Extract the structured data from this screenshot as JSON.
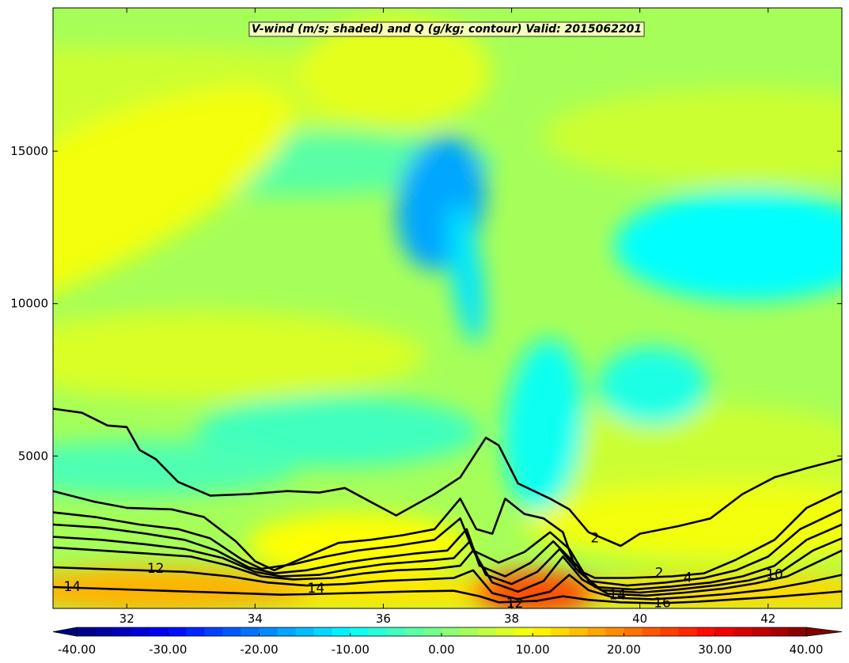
{
  "chart_data": {
    "type": "heatmap",
    "title": "V-wind (m/s; shaded) and Q (g/kg; contour) Valid: 2015062201",
    "xlabel": "",
    "ylabel": "",
    "xlim": [
      30.85,
      43.15
    ],
    "ylim": [
      0,
      19700
    ],
    "x_ticks": [
      32,
      34,
      36,
      38,
      40,
      42
    ],
    "x_tick_labels": [
      "32",
      "34",
      "36",
      "38",
      "40",
      "42"
    ],
    "y_ticks": [
      5000,
      10000,
      15000
    ],
    "y_tick_labels": [
      "5000",
      "10000",
      "15000"
    ],
    "shaded_field": {
      "name": "V-wind",
      "units": "m/s",
      "colormap": "jet",
      "levels_range": [
        -40,
        40
      ],
      "background_value": 3,
      "features": [
        {
          "region": "upper-left band",
          "x": 31.2,
          "y": 13200,
          "value": 9
        },
        {
          "region": "jet core",
          "x": 36.9,
          "y": 13300,
          "value": -17
        },
        {
          "region": "jet core tail",
          "x": 37.3,
          "y": 11000,
          "value": -12
        },
        {
          "region": "upper-right",
          "x": 41.7,
          "y": 11900,
          "value": -10
        },
        {
          "region": "mid-right",
          "x": 40.2,
          "y": 7300,
          "value": -8
        },
        {
          "region": "lower mid",
          "x": 38.5,
          "y": 6000,
          "value": -9
        },
        {
          "region": "near-surface hot spot",
          "x": 38.35,
          "y": 500,
          "value": 24
        },
        {
          "region": "near-surface left",
          "x": 32.5,
          "y": 600,
          "value": 16
        }
      ]
    },
    "contour_field": {
      "name": "Q",
      "units": "g/kg",
      "color": "#000000",
      "visible_labels": [
        {
          "text": "14",
          "x": 31.15,
          "y": 700
        },
        {
          "text": "12",
          "x": 32.45,
          "y": 1300
        },
        {
          "text": "14",
          "x": 34.95,
          "y": 650
        },
        {
          "text": "12",
          "x": 38.05,
          "y": 150
        },
        {
          "text": "2",
          "x": 39.3,
          "y": 2300
        },
        {
          "text": "14",
          "x": 39.65,
          "y": 430
        },
        {
          "text": "16",
          "x": 40.35,
          "y": 170
        },
        {
          "text": "2",
          "x": 40.3,
          "y": 1150
        },
        {
          "text": "4",
          "x": 40.75,
          "y": 1000
        },
        {
          "text": "10",
          "x": 42.1,
          "y": 1100
        }
      ],
      "lines": [
        [
          [
            30.85,
            6550
          ],
          [
            31.3,
            6420
          ],
          [
            31.7,
            6000
          ],
          [
            32.0,
            5950
          ],
          [
            32.2,
            5200
          ],
          [
            32.45,
            4900
          ],
          [
            32.8,
            4150
          ],
          [
            33.3,
            3700
          ],
          [
            33.9,
            3750
          ],
          [
            34.5,
            3850
          ],
          [
            35.0,
            3800
          ],
          [
            35.4,
            3950
          ],
          [
            35.8,
            3500
          ],
          [
            36.2,
            3050
          ],
          [
            36.8,
            3750
          ],
          [
            37.2,
            4300
          ],
          [
            37.6,
            5600
          ],
          [
            37.8,
            5350
          ],
          [
            38.1,
            4100
          ],
          [
            38.6,
            3600
          ],
          [
            38.9,
            3250
          ],
          [
            39.2,
            2500
          ],
          [
            39.7,
            2050
          ],
          [
            40.0,
            2450
          ],
          [
            40.6,
            2700
          ],
          [
            41.1,
            2950
          ],
          [
            41.6,
            3750
          ],
          [
            42.1,
            4300
          ],
          [
            42.6,
            4600
          ],
          [
            43.15,
            4900
          ]
        ],
        [
          [
            30.85,
            3850
          ],
          [
            31.5,
            3500
          ],
          [
            32.0,
            3300
          ],
          [
            32.7,
            3250
          ],
          [
            33.2,
            3000
          ],
          [
            33.7,
            2200
          ],
          [
            34.0,
            1550
          ],
          [
            34.3,
            1250
          ],
          [
            34.8,
            1700
          ],
          [
            35.3,
            2150
          ],
          [
            35.8,
            2250
          ],
          [
            36.3,
            2400
          ],
          [
            36.8,
            2600
          ],
          [
            37.2,
            3600
          ],
          [
            37.45,
            2600
          ],
          [
            37.7,
            2450
          ],
          [
            37.9,
            3600
          ],
          [
            38.2,
            3100
          ],
          [
            38.5,
            2950
          ],
          [
            38.8,
            2500
          ],
          [
            39.0,
            1300
          ],
          [
            39.3,
            1000
          ],
          [
            39.8,
            1000
          ],
          [
            40.5,
            1050
          ],
          [
            41.0,
            1150
          ],
          [
            41.5,
            1600
          ],
          [
            42.1,
            2250
          ],
          [
            42.6,
            3300
          ],
          [
            43.15,
            3850
          ]
        ],
        [
          [
            30.85,
            3150
          ],
          [
            31.5,
            3000
          ],
          [
            32.2,
            2750
          ],
          [
            32.8,
            2600
          ],
          [
            33.3,
            2300
          ],
          [
            33.8,
            1600
          ],
          [
            34.1,
            1300
          ],
          [
            34.6,
            1450
          ],
          [
            35.1,
            1700
          ],
          [
            35.6,
            1900
          ],
          [
            36.2,
            2050
          ],
          [
            36.8,
            2250
          ],
          [
            37.2,
            2950
          ],
          [
            37.4,
            1900
          ],
          [
            37.8,
            1500
          ],
          [
            38.2,
            1850
          ],
          [
            38.6,
            2500
          ],
          [
            38.9,
            1950
          ],
          [
            39.2,
            900
          ],
          [
            39.8,
            750
          ],
          [
            40.4,
            850
          ],
          [
            41.0,
            1000
          ],
          [
            41.5,
            1250
          ],
          [
            42.0,
            1700
          ],
          [
            42.5,
            2600
          ],
          [
            43.15,
            3250
          ]
        ],
        [
          [
            30.85,
            2750
          ],
          [
            31.6,
            2650
          ],
          [
            32.3,
            2450
          ],
          [
            32.9,
            2250
          ],
          [
            33.4,
            1900
          ],
          [
            33.9,
            1350
          ],
          [
            34.3,
            1150
          ],
          [
            34.8,
            1250
          ],
          [
            35.4,
            1500
          ],
          [
            35.9,
            1650
          ],
          [
            36.5,
            1800
          ],
          [
            37.0,
            1900
          ],
          [
            37.3,
            2600
          ],
          [
            37.5,
            1400
          ],
          [
            37.9,
            1050
          ],
          [
            38.3,
            1500
          ],
          [
            38.65,
            2200
          ],
          [
            39.0,
            1450
          ],
          [
            39.3,
            700
          ],
          [
            39.9,
            620
          ],
          [
            40.5,
            720
          ],
          [
            41.1,
            850
          ],
          [
            41.6,
            1050
          ],
          [
            42.1,
            1400
          ],
          [
            42.6,
            2250
          ],
          [
            43.15,
            2750
          ]
        ],
        [
          [
            30.85,
            2350
          ],
          [
            31.6,
            2250
          ],
          [
            32.3,
            2100
          ],
          [
            32.9,
            1950
          ],
          [
            33.5,
            1650
          ],
          [
            34.0,
            1200
          ],
          [
            34.4,
            1050
          ],
          [
            35.0,
            1100
          ],
          [
            35.5,
            1300
          ],
          [
            36.0,
            1450
          ],
          [
            36.6,
            1550
          ],
          [
            37.1,
            1650
          ],
          [
            37.35,
            2200
          ],
          [
            37.6,
            1100
          ],
          [
            38.0,
            800
          ],
          [
            38.4,
            1200
          ],
          [
            38.75,
            1950
          ],
          [
            39.05,
            1200
          ],
          [
            39.4,
            600
          ],
          [
            40.0,
            520
          ],
          [
            40.6,
            620
          ],
          [
            41.2,
            760
          ],
          [
            41.7,
            920
          ],
          [
            42.2,
            1200
          ],
          [
            42.7,
            1900
          ],
          [
            43.15,
            2300
          ]
        ],
        [
          [
            30.85,
            2000
          ],
          [
            31.6,
            1900
          ],
          [
            32.3,
            1800
          ],
          [
            33.0,
            1700
          ],
          [
            33.6,
            1400
          ],
          [
            34.1,
            1050
          ],
          [
            34.6,
            950
          ],
          [
            35.2,
            1000
          ],
          [
            35.7,
            1150
          ],
          [
            36.2,
            1250
          ],
          [
            36.8,
            1300
          ],
          [
            37.2,
            1400
          ],
          [
            37.4,
            1900
          ],
          [
            37.7,
            850
          ],
          [
            38.1,
            550
          ],
          [
            38.5,
            900
          ],
          [
            38.8,
            1700
          ],
          [
            39.1,
            950
          ],
          [
            39.5,
            480
          ],
          [
            40.1,
            420
          ],
          [
            40.7,
            520
          ],
          [
            41.3,
            650
          ],
          [
            41.8,
            820
          ],
          [
            42.3,
            1050
          ],
          [
            42.8,
            1550
          ],
          [
            43.15,
            1900
          ]
        ],
        [
          [
            30.85,
            1350
          ],
          [
            31.5,
            1300
          ],
          [
            32.2,
            1250
          ],
          [
            32.9,
            1200
          ],
          [
            33.6,
            1050
          ],
          [
            34.2,
            850
          ],
          [
            34.8,
            750
          ],
          [
            35.4,
            800
          ],
          [
            36.0,
            900
          ],
          [
            36.6,
            950
          ],
          [
            37.1,
            1000
          ],
          [
            37.4,
            1250
          ],
          [
            37.7,
            500
          ],
          [
            38.1,
            300
          ],
          [
            38.6,
            550
          ],
          [
            38.9,
            1100
          ],
          [
            39.2,
            600
          ],
          [
            39.6,
            350
          ],
          [
            40.2,
            300
          ],
          [
            40.8,
            380
          ],
          [
            41.4,
            480
          ],
          [
            42.0,
            620
          ],
          [
            42.6,
            850
          ],
          [
            43.15,
            1100
          ]
        ],
        [
          [
            30.85,
            700
          ],
          [
            31.6,
            650
          ],
          [
            32.3,
            600
          ],
          [
            33.0,
            550
          ],
          [
            33.7,
            500
          ],
          [
            34.4,
            450
          ],
          [
            35.1,
            480
          ],
          [
            35.8,
            520
          ],
          [
            36.5,
            560
          ],
          [
            37.1,
            580
          ],
          [
            37.5,
            400
          ],
          [
            37.8,
            200
          ],
          [
            38.4,
            250
          ],
          [
            38.8,
            400
          ],
          [
            39.2,
            280
          ],
          [
            39.7,
            200
          ],
          [
            40.3,
            170
          ],
          [
            40.9,
            220
          ],
          [
            41.5,
            300
          ],
          [
            42.1,
            380
          ],
          [
            42.7,
            480
          ],
          [
            43.15,
            560
          ]
        ]
      ]
    },
    "colorbar": {
      "orientation": "horizontal",
      "placement": "bottom",
      "extend": "both",
      "range": [
        -40,
        40
      ],
      "n_levels": 40,
      "tick_values": [
        -40,
        -30,
        -20,
        -10,
        0,
        10,
        20,
        30,
        40
      ],
      "tick_labels": [
        "-40.00",
        "-30.00",
        "-20.00",
        "-10.00",
        "0.00",
        "10.00",
        "20.00",
        "30.00",
        "40.00"
      ]
    }
  }
}
